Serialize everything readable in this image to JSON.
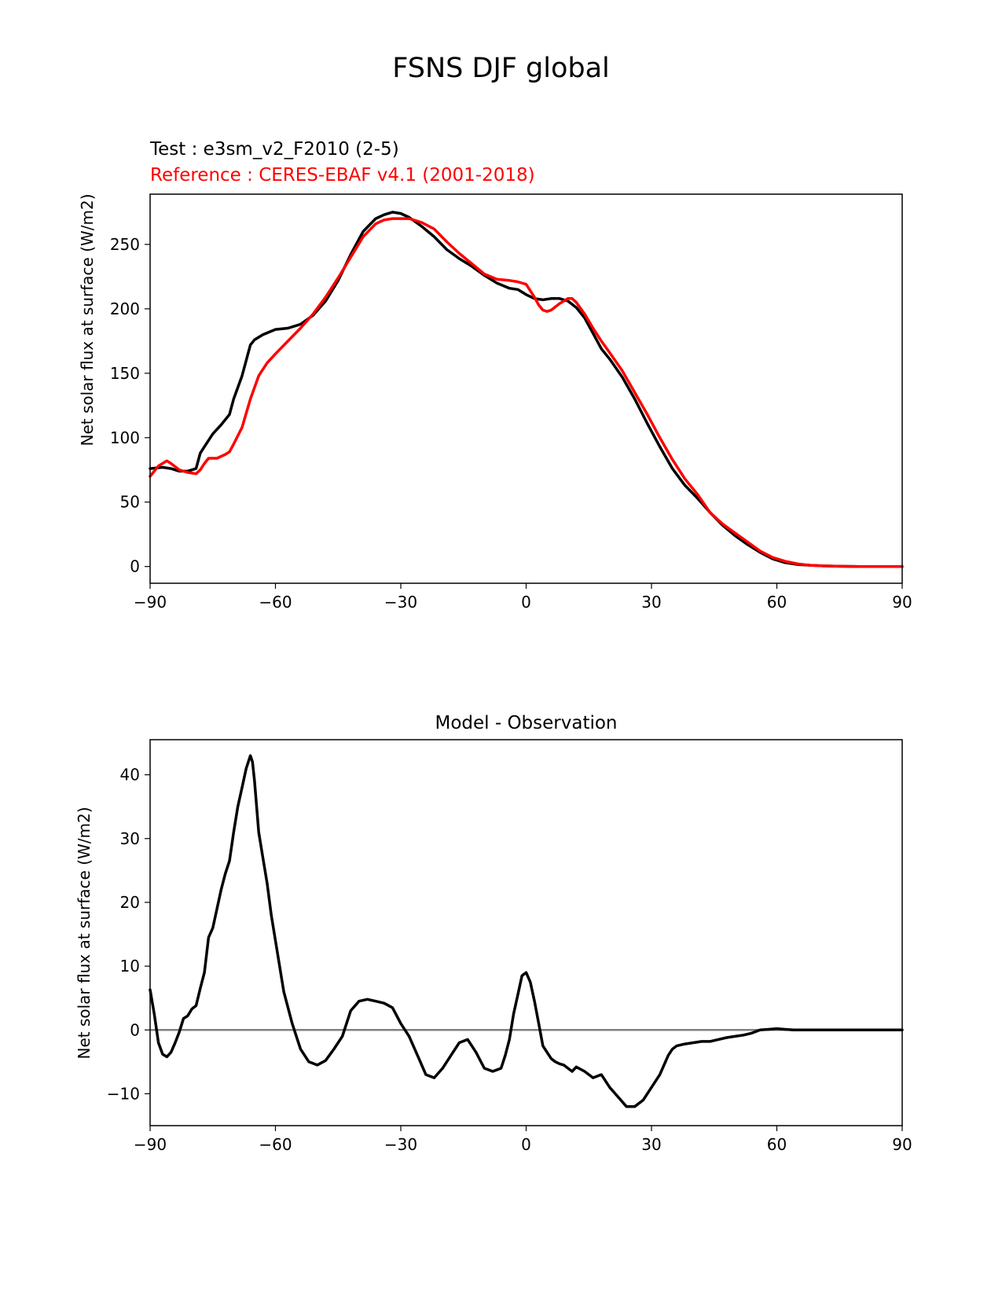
{
  "figure": {
    "title": "FSNS DJF global",
    "test_label": "Test : e3sm_v2_F2010 (2-5)",
    "reference_label": "Reference : CERES-EBAF v4.1 (2001-2018)",
    "colors": {
      "test": "#000000",
      "reference": "#ff0000",
      "zero_line": "#808080"
    }
  },
  "chart_data": [
    {
      "type": "line",
      "title": "",
      "xlabel": "",
      "ylabel": "Net solar flux at surface (W/m2)",
      "xlim": [
        -90,
        90
      ],
      "ylim": [
        -13,
        289
      ],
      "xticks": [
        -90,
        -60,
        -30,
        0,
        30,
        60,
        90
      ],
      "xtick_labels": [
        "−90",
        "−60",
        "−30",
        "0",
        "30",
        "60",
        "90"
      ],
      "yticks": [
        0,
        50,
        100,
        150,
        200,
        250
      ],
      "ytick_labels": [
        "0",
        "50",
        "100",
        "150",
        "200",
        "250"
      ],
      "grid": false,
      "series": [
        {
          "name": "Test : e3sm_v2_F2010 (2-5)",
          "color": "#000000",
          "x": [
            -90,
            -87,
            -85,
            -83,
            -81,
            -79,
            -78,
            -77,
            -75,
            -73,
            -71,
            -70,
            -68,
            -66,
            -65,
            -63,
            -60,
            -57,
            -54,
            -51,
            -48,
            -45,
            -42,
            -39,
            -36,
            -34,
            -32,
            -30,
            -28,
            -25,
            -22,
            -19,
            -16,
            -13,
            -10,
            -7,
            -4,
            -2,
            0,
            2,
            4,
            6,
            8,
            10,
            12,
            14,
            16,
            18,
            20,
            23,
            26,
            29,
            32,
            35,
            38,
            41,
            44,
            47,
            50,
            53,
            56,
            59,
            62,
            65,
            68,
            71,
            75,
            80,
            85,
            90
          ],
          "y": [
            76,
            77,
            76,
            74,
            74,
            76,
            88,
            93,
            103,
            110,
            118,
            130,
            148,
            172,
            176,
            180,
            184,
            185,
            188,
            195,
            206,
            222,
            242,
            260,
            270,
            273,
            275,
            274,
            271,
            264,
            256,
            246,
            239,
            233,
            226,
            220,
            216,
            215,
            211,
            208,
            207,
            208,
            208,
            206,
            201,
            193,
            181,
            169,
            161,
            147,
            130,
            111,
            93,
            76,
            63,
            53,
            42,
            32,
            24,
            17,
            11,
            6,
            3,
            1.5,
            1,
            0.5,
            0.2,
            0,
            0,
            0
          ]
        },
        {
          "name": "Reference : CERES-EBAF v4.1 (2001-2018)",
          "color": "#ff0000",
          "x": [
            -90,
            -88,
            -86,
            -85,
            -83,
            -81,
            -79,
            -78,
            -77,
            -76,
            -74,
            -72,
            -71,
            -70,
            -68,
            -66,
            -64,
            -62,
            -60,
            -57,
            -54,
            -51,
            -48,
            -45,
            -42,
            -39,
            -36,
            -34,
            -32,
            -30,
            -28,
            -25,
            -22,
            -19,
            -16,
            -13,
            -10,
            -7,
            -4,
            -2,
            0,
            2,
            3,
            4,
            5,
            6,
            8,
            10,
            11,
            12,
            14,
            16,
            18,
            20,
            23,
            26,
            29,
            32,
            35,
            38,
            41,
            44,
            47,
            50,
            53,
            56,
            59,
            62,
            65,
            68,
            71,
            75,
            80,
            85,
            90
          ],
          "y": [
            70,
            78,
            82,
            80,
            75,
            73,
            72,
            75,
            80,
            84,
            84,
            87,
            89,
            95,
            108,
            130,
            148,
            158,
            165,
            175,
            185,
            196,
            209,
            224,
            240,
            256,
            266,
            269,
            270,
            270,
            270,
            267,
            262,
            252,
            243,
            235,
            227,
            223,
            222,
            221,
            219,
            209,
            203,
            199,
            198,
            199,
            204,
            208,
            208,
            205,
            196,
            185,
            175,
            166,
            152,
            135,
            118,
            100,
            83,
            68,
            56,
            42,
            33,
            26,
            19,
            12,
            7,
            4,
            2,
            1,
            0.5,
            0.2,
            0,
            0,
            0
          ]
        }
      ]
    },
    {
      "type": "line",
      "title": "Model - Observation",
      "xlabel": "",
      "ylabel": "Net solar flux at surface (W/m2)",
      "xlim": [
        -90,
        90
      ],
      "ylim": [
        -15,
        45.5
      ],
      "xticks": [
        -90,
        -60,
        -30,
        0,
        30,
        60,
        90
      ],
      "xtick_labels": [
        "−90",
        "−60",
        "−30",
        "0",
        "30",
        "60",
        "90"
      ],
      "yticks": [
        -10,
        0,
        10,
        20,
        30,
        40
      ],
      "ytick_labels": [
        "−10",
        "0",
        "10",
        "20",
        "30",
        "40"
      ],
      "grid": false,
      "reference_line_y": 0,
      "series": [
        {
          "name": "",
          "color": "#000000",
          "x": [
            -90,
            -89,
            -88,
            -87,
            -86,
            -85,
            -84,
            -83,
            -82,
            -81,
            -80,
            -79,
            -78,
            -77,
            -76,
            -75,
            -74,
            -73,
            -72,
            -71,
            -70,
            -69,
            -68,
            -67,
            -66,
            -65.5,
            -65,
            -64,
            -63,
            -62,
            -61,
            -60,
            -58,
            -56,
            -54,
            -52,
            -50,
            -48,
            -46,
            -44,
            -42,
            -40,
            -38,
            -36,
            -34,
            -32,
            -30,
            -28,
            -26,
            -24,
            -22,
            -20,
            -18,
            -16,
            -14,
            -12,
            -10,
            -8,
            -6,
            -5,
            -4,
            -3,
            -2,
            -1,
            0,
            1,
            2,
            3,
            4,
            5,
            6,
            7,
            8,
            9,
            10,
            11,
            12,
            14,
            16,
            18,
            20,
            22,
            24,
            26,
            28,
            30,
            32,
            34,
            35,
            36,
            38,
            40,
            42,
            44,
            46,
            48,
            50,
            52,
            54,
            56,
            58,
            60,
            62,
            64,
            66,
            68,
            70,
            72,
            75,
            80,
            90
          ],
          "y": [
            6.3,
            2.5,
            -2,
            -3.8,
            -4.2,
            -3.5,
            -2,
            -0.3,
            1.8,
            2.2,
            3.3,
            3.8,
            6.5,
            9,
            14.5,
            16,
            19,
            22,
            24.5,
            26.5,
            31,
            35,
            38,
            41,
            43,
            42,
            39,
            31,
            27,
            23,
            18,
            14,
            6,
            1,
            -3,
            -5,
            -5.5,
            -4.8,
            -3,
            -1,
            3,
            4.5,
            4.8,
            4.5,
            4.2,
            3.5,
            1,
            -1,
            -4,
            -7,
            -7.5,
            -6,
            -4,
            -2,
            -1.5,
            -3.5,
            -6,
            -6.5,
            -6,
            -4,
            -1.5,
            2.5,
            5.5,
            8.5,
            9,
            7.5,
            4.5,
            1,
            -2.5,
            -3.5,
            -4.5,
            -5,
            -5.3,
            -5.5,
            -6,
            -6.5,
            -5.8,
            -6.5,
            -7.5,
            -7,
            -9,
            -10.5,
            -12,
            -12,
            -11,
            -9,
            -7,
            -4,
            -3,
            -2.5,
            -2.2,
            -2,
            -1.8,
            -1.8,
            -1.5,
            -1.2,
            -1,
            -0.8,
            -0.5,
            0,
            0.1,
            0.2,
            0.1,
            0,
            0,
            0,
            0,
            0,
            0,
            0,
            0
          ]
        }
      ]
    }
  ]
}
